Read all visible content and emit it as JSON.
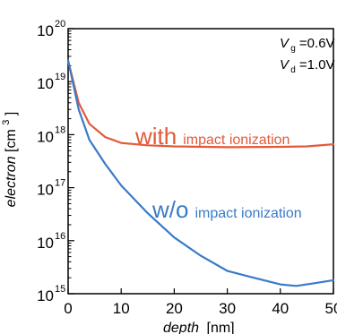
{
  "chart_data": {
    "type": "line",
    "xlabel": "depth",
    "xlabel_unit": "[nm]",
    "ylabel": "electron",
    "ylabel_unit": "[cm",
    "ylabel_unit_exp": "3",
    "ylabel_unit_close": "]",
    "xlim": [
      0,
      50
    ],
    "ylim_log10": [
      15,
      20
    ],
    "y_scale": "log",
    "grid": false,
    "x_ticks": [
      "0",
      "10",
      "20",
      "30",
      "40",
      "50"
    ],
    "y_tick_base": "10",
    "y_tick_exps": [
      "15",
      "16",
      "17",
      "18",
      "19",
      "20"
    ],
    "annotation": {
      "vg_sym": "V",
      "vg_sub": "g",
      "vg_val": "=0.6V",
      "vd_sym": "V",
      "vd_sub": "d",
      "vd_val": "=1.0V"
    },
    "series": [
      {
        "label_big": "with",
        "label_small": "impact ionization",
        "color": "#e35a3a",
        "x": [
          0,
          2,
          4,
          7,
          10,
          15,
          20,
          30,
          40,
          45,
          50
        ],
        "y": [
          2.5e+19,
          4e+18,
          1.6e+18,
          9e+17,
          7e+17,
          6.3e+17,
          6e+17,
          5.8e+17,
          5.9e+17,
          6e+17,
          6.6e+17
        ]
      },
      {
        "label_big": "w/o",
        "label_small": "impact ionization",
        "color": "#3a7ac8",
        "x": [
          0,
          2,
          4,
          7,
          10,
          15,
          20,
          25,
          30,
          35,
          40,
          43,
          46,
          50
        ],
        "y": [
          2.5e+19,
          3e+18,
          8e+17,
          2.8e+17,
          1.1e+17,
          3.3e+16,
          1.15e+16,
          5200000000000000.0,
          2700000000000000.0,
          2000000000000000.0,
          1500000000000000.0,
          1400000000000000.0,
          1550000000000000.0,
          1800000000000000.0
        ]
      }
    ]
  }
}
